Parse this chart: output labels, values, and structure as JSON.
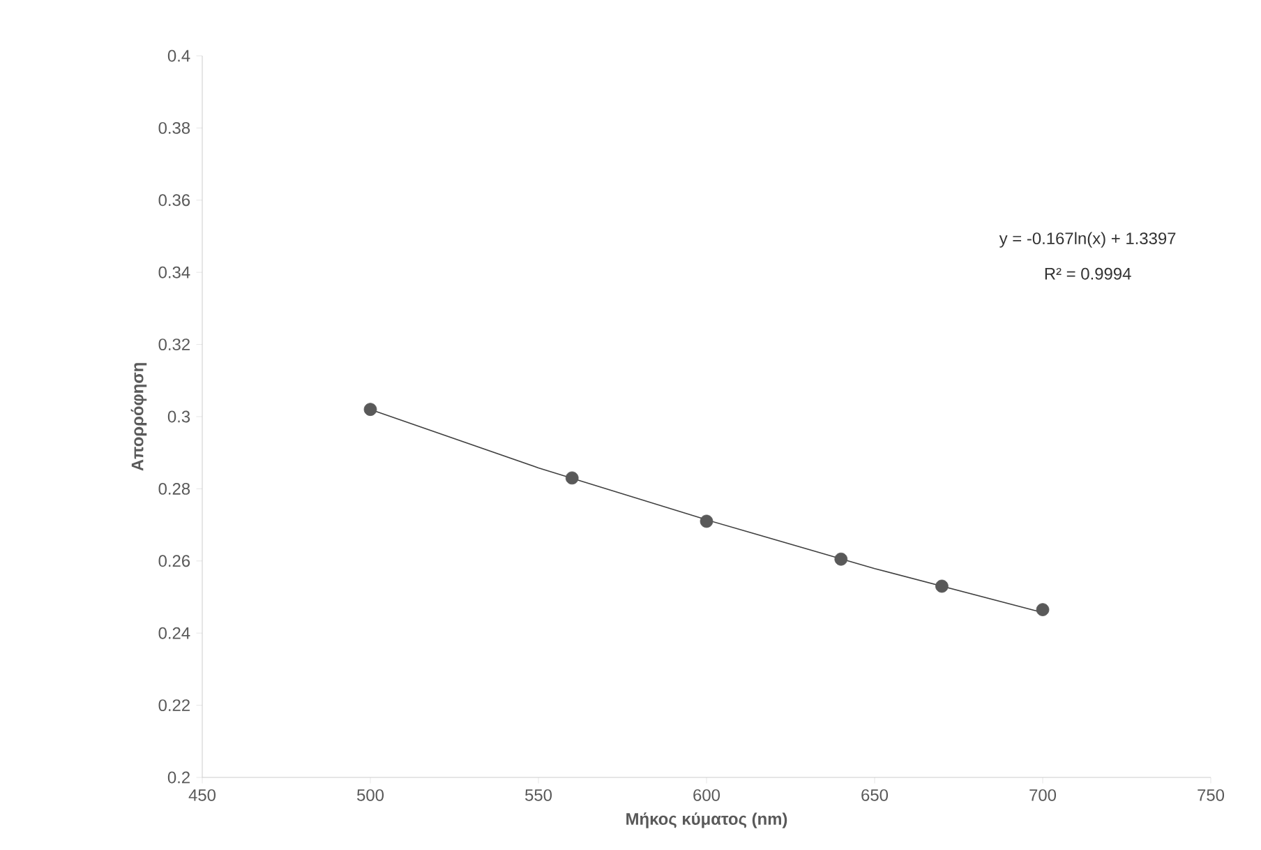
{
  "chart_data": {
    "type": "scatter",
    "xlabel": "Μήκος κύματος (nm)",
    "ylabel": "Απορρόφηση",
    "xlim": [
      450,
      750
    ],
    "xticks": [
      450,
      500,
      550,
      600,
      650,
      700,
      750
    ],
    "ylim": [
      0.2,
      0.4
    ],
    "yticks": [
      0.2,
      0.22,
      0.24,
      0.26,
      0.28,
      0.3,
      0.32,
      0.34,
      0.36,
      0.38,
      0.4
    ],
    "grid": false,
    "series": [
      {
        "marker": "circle",
        "color": "#595959",
        "x": [
          500,
          560,
          600,
          640,
          670,
          700
        ],
        "values": [
          0.302,
          0.283,
          0.271,
          0.2605,
          0.253,
          0.2465
        ]
      },
      {
        "type": "line",
        "line_style": "solid",
        "color": "#404040",
        "x": [
          500,
          550,
          600,
          650,
          700
        ],
        "values": [
          0.302,
          0.2858,
          0.2714,
          0.2579,
          0.2457
        ]
      }
    ],
    "annotations": [
      "y = -0.167ln(x) + 1.3397",
      "R² = 0.9994"
    ]
  }
}
